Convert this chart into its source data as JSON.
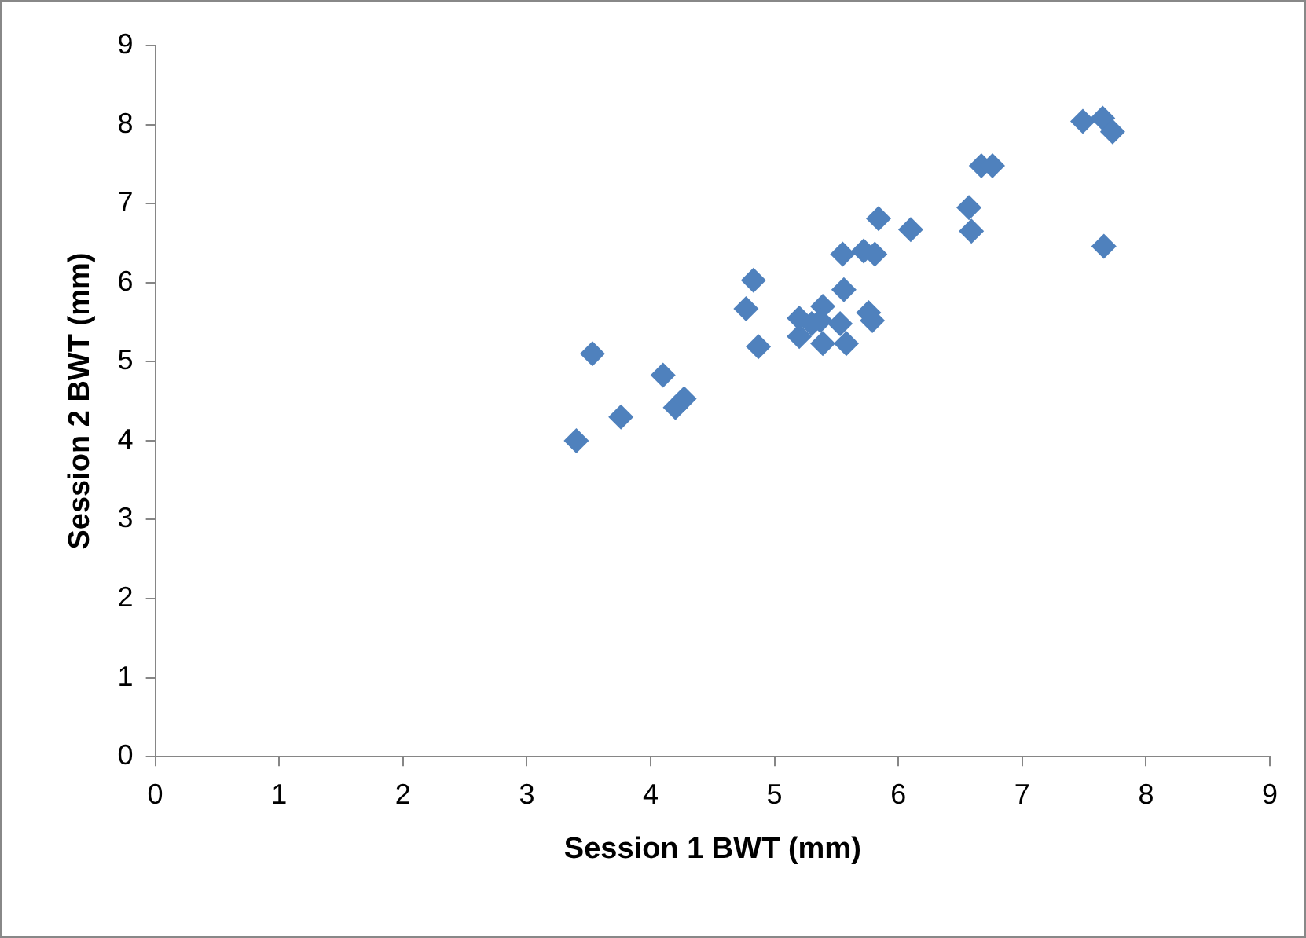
{
  "chart_data": {
    "type": "scatter",
    "xlabel": "Session 1 BWT (mm)",
    "ylabel": "Session 2 BWT (mm)",
    "x": [
      3.4,
      3.53,
      3.76,
      4.1,
      4.2,
      4.27,
      4.77,
      4.83,
      4.87,
      5.2,
      5.2,
      5.3,
      5.39,
      5.37,
      5.39,
      5.53,
      5.56,
      5.55,
      5.58,
      5.72,
      5.76,
      5.79,
      5.81,
      5.84,
      6.1,
      6.57,
      6.59,
      6.67,
      6.76,
      7.49,
      7.65,
      7.73,
      7.66
    ],
    "series": [
      {
        "color": "#4f81bd",
        "values": [
          4.0,
          5.1,
          4.3,
          4.83,
          4.42,
          4.53,
          5.67,
          6.03,
          5.19,
          5.32,
          5.55,
          5.48,
          5.7,
          5.52,
          5.23,
          5.48,
          5.91,
          6.36,
          5.23,
          6.4,
          5.62,
          5.52,
          6.36,
          6.81,
          6.67,
          6.95,
          6.65,
          7.48,
          7.48,
          8.04,
          8.08,
          7.91,
          6.46
        ]
      }
    ],
    "xlim": [
      0,
      9
    ],
    "xticks": [
      0,
      1,
      2,
      3,
      4,
      5,
      6,
      7,
      8,
      9
    ],
    "ylim": [
      0,
      9
    ],
    "yticks": [
      0,
      1,
      2,
      3,
      4,
      5,
      6,
      7,
      8,
      9
    ],
    "grid": false,
    "legend": false,
    "marker": "diamond"
  }
}
